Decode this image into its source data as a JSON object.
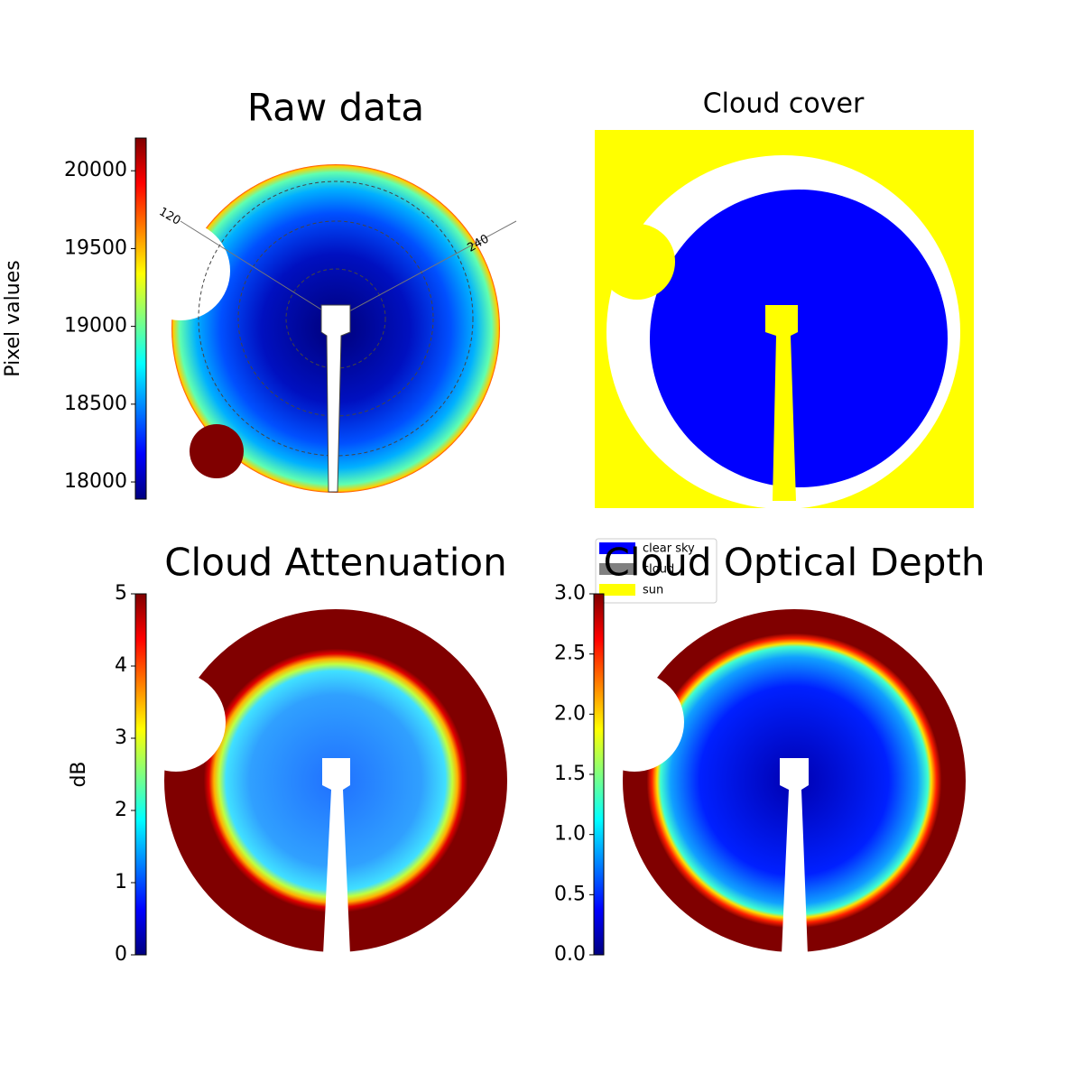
{
  "chart_data": [
    {
      "type": "image",
      "title": "Raw data",
      "annotations": [
        "120",
        "240"
      ],
      "colorbar": {
        "label": "Pixel values",
        "lim": [
          17890,
          20210
        ],
        "ticks": [
          18000,
          18500,
          19000,
          19500,
          20000
        ]
      }
    },
    {
      "type": "image",
      "title": "Cloud cover",
      "legend": [
        {
          "name": "clear sky",
          "color": "#0000ff"
        },
        {
          "name": "cloud",
          "color": "#808080"
        },
        {
          "name": "sun",
          "color": "#ffff00"
        }
      ]
    },
    {
      "type": "image",
      "title": "Cloud Attenuation",
      "colorbar": {
        "label": "dB",
        "lim": [
          0,
          5
        ],
        "ticks": [
          0,
          1,
          2,
          3,
          4,
          5
        ]
      }
    },
    {
      "type": "image",
      "title": "Cloud Optical Depth",
      "colorbar": {
        "lim": [
          0,
          3
        ],
        "ticks": [
          {
            "value": 0,
            "label": "0.0"
          },
          0.5,
          {
            "value": 1,
            "label": "1.0"
          },
          1.5,
          {
            "value": 2,
            "label": "2.0"
          },
          2.5,
          {
            "value": 3,
            "label": "3.0"
          }
        ]
      }
    }
  ]
}
